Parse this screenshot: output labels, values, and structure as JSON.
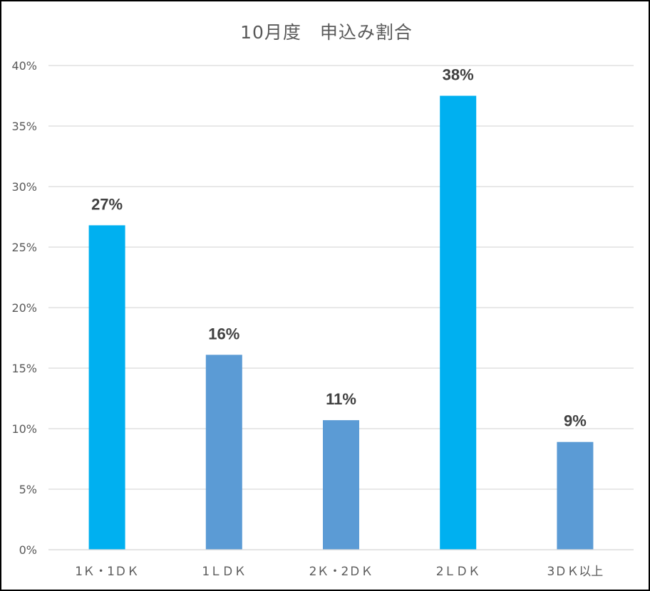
{
  "chart_data": {
    "type": "bar",
    "title": "10月度　申込み割合",
    "xlabel": "",
    "ylabel": "",
    "categories": [
      "1Ｋ・1ＤＫ",
      "1ＬＤＫ",
      "2Ｋ・2ＤＫ",
      "2ＬＤＫ",
      "3ＤＫ以上"
    ],
    "values": [
      0.268,
      0.161,
      0.107,
      0.375,
      0.089
    ],
    "data_labels": [
      "27%",
      "16%",
      "11%",
      "38%",
      "9%"
    ],
    "bar_colors": [
      "#00b0f0",
      "#5b9bd5",
      "#5b9bd5",
      "#00b0f0",
      "#5b9bd5"
    ],
    "ylim": [
      0,
      0.4
    ],
    "y_ticks": [
      0,
      0.05,
      0.1,
      0.15,
      0.2,
      0.25,
      0.3,
      0.35,
      0.4
    ],
    "y_tick_labels": [
      "0%",
      "5%",
      "10%",
      "15%",
      "20%",
      "25%",
      "30%",
      "35%",
      "40%"
    ],
    "grid": true,
    "legend": "none"
  }
}
